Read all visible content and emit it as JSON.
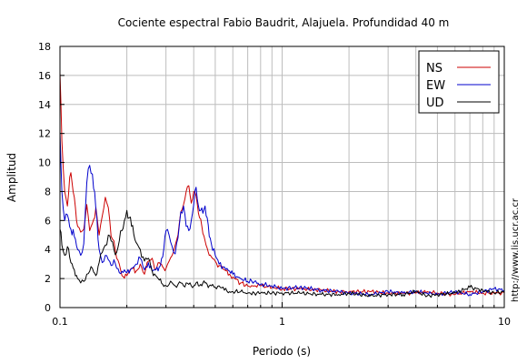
{
  "chart_data": {
    "type": "line",
    "title": "Cociente espectral Fabio Baudrit, Alajuela. Profundidad 40 m",
    "xlabel": "Periodo (s)",
    "ylabel": "Amplitud",
    "x_scale": "log",
    "xlim": [
      0.1,
      10
    ],
    "ylim": [
      0,
      18
    ],
    "x_ticks": [
      0.1,
      1,
      10
    ],
    "x_tick_labels": [
      "0.1",
      "1",
      "10"
    ],
    "y_ticks": [
      0,
      2,
      4,
      6,
      8,
      10,
      12,
      14,
      16,
      18
    ],
    "y_tick_labels": [
      "0",
      "2",
      "4",
      "6",
      "8",
      "10",
      "12",
      "14",
      "16",
      "18"
    ],
    "grid": true,
    "legend_position": "top-right",
    "credit": "http://www.lis.ucr.ac.cr",
    "series": [
      {
        "name": "NS",
        "color": "#cc0000",
        "x": [
          0.1,
          0.102,
          0.105,
          0.108,
          0.112,
          0.116,
          0.12,
          0.124,
          0.128,
          0.132,
          0.136,
          0.14,
          0.145,
          0.15,
          0.155,
          0.16,
          0.165,
          0.17,
          0.175,
          0.18,
          0.185,
          0.19,
          0.2,
          0.21,
          0.22,
          0.23,
          0.24,
          0.25,
          0.26,
          0.27,
          0.28,
          0.29,
          0.3,
          0.31,
          0.32,
          0.33,
          0.34,
          0.35,
          0.36,
          0.37,
          0.38,
          0.39,
          0.4,
          0.41,
          0.42,
          0.43,
          0.44,
          0.45,
          0.46,
          0.47,
          0.48,
          0.5,
          0.52,
          0.55,
          0.58,
          0.6,
          0.65,
          0.7,
          0.75,
          0.8,
          0.9,
          1.0,
          1.2,
          1.5,
          1.8,
          2.0,
          2.5,
          3.0,
          3.5,
          4.0,
          4.5,
          5.0,
          6.0,
          7.0,
          8.0,
          9.0,
          10.0
        ],
        "y": [
          16.2,
          11.5,
          8.0,
          7.0,
          9.3,
          7.6,
          5.6,
          5.2,
          5.4,
          7.1,
          5.3,
          5.8,
          6.9,
          5.0,
          6.3,
          7.6,
          6.9,
          4.9,
          4.6,
          3.4,
          3.0,
          2.2,
          2.2,
          2.7,
          2.5,
          3.0,
          2.3,
          3.2,
          3.4,
          2.6,
          3.1,
          2.8,
          2.7,
          3.2,
          3.6,
          4.3,
          5.0,
          6.6,
          7.1,
          8.0,
          8.4,
          7.2,
          8.0,
          7.7,
          6.5,
          6.1,
          5.1,
          4.6,
          4.1,
          3.6,
          3.5,
          3.2,
          2.9,
          2.6,
          2.3,
          2.1,
          1.7,
          1.5,
          1.5,
          1.5,
          1.4,
          1.3,
          1.3,
          1.2,
          1.1,
          1.1,
          1.1,
          1.0,
          1.0,
          1.0,
          1.1,
          1.0,
          0.9,
          1.1,
          1.0,
          1.0,
          1.0
        ]
      },
      {
        "name": "EW",
        "color": "#0000cc",
        "x": [
          0.1,
          0.102,
          0.105,
          0.108,
          0.112,
          0.116,
          0.12,
          0.124,
          0.128,
          0.132,
          0.136,
          0.14,
          0.145,
          0.15,
          0.155,
          0.16,
          0.165,
          0.17,
          0.175,
          0.18,
          0.185,
          0.19,
          0.2,
          0.21,
          0.22,
          0.23,
          0.24,
          0.25,
          0.26,
          0.27,
          0.28,
          0.29,
          0.3,
          0.31,
          0.32,
          0.33,
          0.34,
          0.35,
          0.36,
          0.37,
          0.38,
          0.39,
          0.4,
          0.41,
          0.42,
          0.43,
          0.44,
          0.45,
          0.46,
          0.47,
          0.48,
          0.5,
          0.52,
          0.55,
          0.58,
          0.6,
          0.65,
          0.7,
          0.75,
          0.8,
          0.9,
          1.0,
          1.2,
          1.5,
          1.8,
          2.0,
          2.5,
          3.0,
          3.5,
          4.0,
          4.5,
          5.0,
          6.0,
          7.0,
          8.0,
          9.0,
          10.0
        ],
        "y": [
          12.1,
          8.0,
          6.0,
          6.4,
          5.4,
          4.9,
          4.0,
          3.6,
          4.4,
          8.6,
          9.8,
          9.2,
          6.8,
          4.0,
          3.1,
          3.6,
          3.3,
          2.9,
          3.3,
          2.7,
          2.4,
          2.5,
          2.4,
          2.7,
          3.0,
          3.4,
          2.6,
          3.1,
          2.5,
          2.6,
          2.8,
          3.5,
          5.3,
          5.0,
          4.2,
          3.7,
          4.8,
          6.6,
          7.0,
          5.6,
          5.3,
          6.0,
          7.1,
          8.3,
          7.0,
          6.7,
          6.5,
          7.0,
          6.2,
          4.9,
          4.4,
          3.6,
          3.0,
          2.8,
          2.5,
          2.3,
          2.0,
          1.8,
          1.8,
          1.6,
          1.5,
          1.3,
          1.4,
          1.2,
          1.1,
          1.0,
          0.9,
          1.1,
          1.0,
          1.1,
          1.0,
          0.9,
          1.1,
          0.9,
          1.1,
          1.3,
          1.2
        ]
      },
      {
        "name": "UD",
        "color": "#000000",
        "x": [
          0.1,
          0.102,
          0.105,
          0.108,
          0.112,
          0.116,
          0.12,
          0.124,
          0.128,
          0.132,
          0.136,
          0.14,
          0.145,
          0.15,
          0.155,
          0.16,
          0.165,
          0.17,
          0.175,
          0.18,
          0.185,
          0.19,
          0.2,
          0.21,
          0.22,
          0.23,
          0.24,
          0.25,
          0.26,
          0.27,
          0.28,
          0.29,
          0.3,
          0.31,
          0.32,
          0.33,
          0.34,
          0.35,
          0.36,
          0.37,
          0.38,
          0.39,
          0.4,
          0.41,
          0.42,
          0.43,
          0.44,
          0.45,
          0.46,
          0.47,
          0.48,
          0.5,
          0.52,
          0.55,
          0.58,
          0.6,
          0.65,
          0.7,
          0.75,
          0.8,
          0.9,
          1.0,
          1.2,
          1.5,
          1.8,
          2.0,
          2.5,
          3.0,
          3.5,
          4.0,
          4.5,
          5.0,
          6.0,
          7.0,
          8.0,
          9.0,
          10.0
        ],
        "y": [
          5.4,
          4.3,
          3.6,
          4.2,
          3.1,
          2.6,
          2.0,
          1.7,
          1.8,
          2.3,
          2.5,
          2.7,
          2.2,
          3.1,
          3.8,
          4.3,
          5.0,
          4.6,
          4.0,
          3.8,
          4.6,
          5.3,
          6.7,
          5.6,
          4.5,
          4.0,
          3.2,
          3.4,
          2.5,
          2.2,
          1.9,
          1.6,
          1.5,
          1.6,
          1.7,
          1.5,
          1.6,
          1.7,
          1.5,
          1.7,
          1.6,
          1.5,
          1.5,
          1.7,
          1.5,
          1.6,
          1.7,
          1.7,
          1.6,
          1.5,
          1.5,
          1.4,
          1.5,
          1.2,
          1.1,
          1.1,
          1.1,
          1.0,
          1.0,
          1.0,
          1.0,
          1.0,
          1.0,
          0.9,
          0.9,
          1.0,
          0.8,
          0.9,
          0.9,
          1.1,
          0.8,
          0.9,
          1.0,
          1.4,
          1.2,
          1.0,
          1.1
        ]
      }
    ]
  }
}
